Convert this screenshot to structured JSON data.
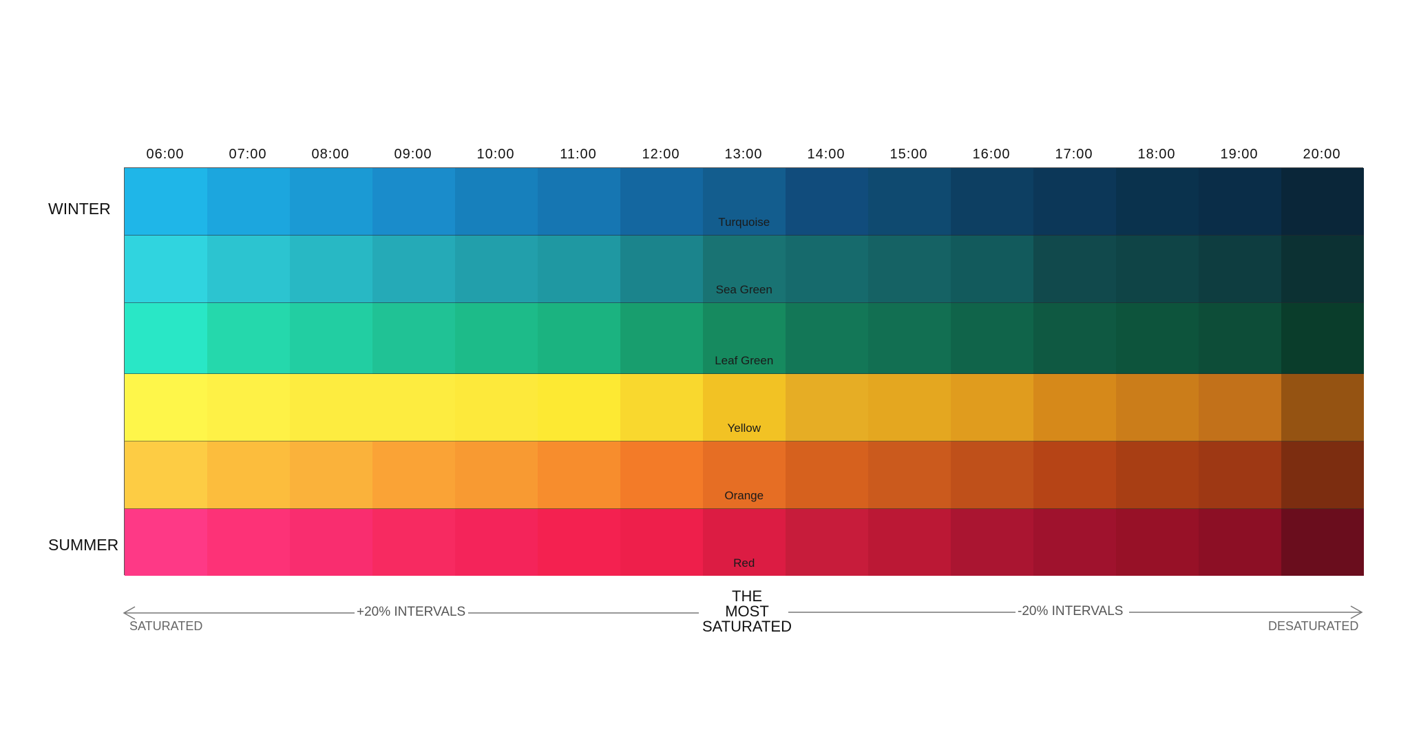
{
  "times": [
    "06:00",
    "07:00",
    "08:00",
    "09:00",
    "10:00",
    "11:00",
    "12:00",
    "13:00",
    "14:00",
    "15:00",
    "16:00",
    "17:00",
    "18:00",
    "19:00",
    "20:00"
  ],
  "seasons": {
    "top": "WINTER",
    "bottom": "SUMMER"
  },
  "rows": [
    {
      "name": "Turquoise",
      "colors": [
        "#1fb6e8",
        "#1ca6de",
        "#1b9ad4",
        "#1a8ccb",
        "#1780bc",
        "#1676b2",
        "#1467a0",
        "#135d8e",
        "#114c7c",
        "#0f4a70",
        "#0d3f62",
        "#0c3758",
        "#0a324d",
        "#0a2d48",
        "#0a2639"
      ]
    },
    {
      "name": "Sea Green",
      "colors": [
        "#30d4df",
        "#2cc4d0",
        "#28b8c4",
        "#25aab7",
        "#229fab",
        "#1f98a2",
        "#1b848c",
        "#197373",
        "#166a6c",
        "#156264",
        "#125a5c",
        "#11494c",
        "#0f4446",
        "#0e3d40",
        "#0c3133"
      ]
    },
    {
      "name": "Leaf Green",
      "colors": [
        "#29e7c6",
        "#25d8ac",
        "#22cea2",
        "#20c295",
        "#1dbb89",
        "#1bb380",
        "#189e6e",
        "#168a5f",
        "#137757",
        "#126f52",
        "#10644a",
        "#0f5942",
        "#0d543c",
        "#0d4d38",
        "#0a3d2b"
      ]
    },
    {
      "name": "Yellow",
      "colors": [
        "#fef64a",
        "#fef146",
        "#fdec40",
        "#fdec40",
        "#fde93b",
        "#fde933",
        "#f9d82e",
        "#f2c224",
        "#e6ad25",
        "#e4a720",
        "#e09c1e",
        "#d6891a",
        "#cb7d1a",
        "#c2711a",
        "#955312"
      ]
    },
    {
      "name": "Orange",
      "colors": [
        "#fdcc44",
        "#fcbd3d",
        "#fab23b",
        "#faa336",
        "#f89a32",
        "#f78d2d",
        "#f37b28",
        "#e66e24",
        "#d6611e",
        "#cb5a1d",
        "#bf501a",
        "#b64416",
        "#a83e14",
        "#9e3814",
        "#7c2d10"
      ]
    },
    {
      "name": "Red",
      "colors": [
        "#fe3986",
        "#fd3277",
        "#f92d6f",
        "#f72a61",
        "#f4245a",
        "#f42150",
        "#ee1f4b",
        "#dc1c43",
        "#c71c3b",
        "#bb1835",
        "#aa1531",
        "#9f122d",
        "#971127",
        "#8c0f25",
        "#6a0d1d"
      ]
    }
  ],
  "axis": {
    "left_interval": "+20% INTERVALS",
    "right_interval": "-20% INTERVALS",
    "left_end": "SATURATED",
    "right_end": "DESATURATED",
    "center": [
      "THE",
      "MOST",
      "SATURATED"
    ]
  }
}
